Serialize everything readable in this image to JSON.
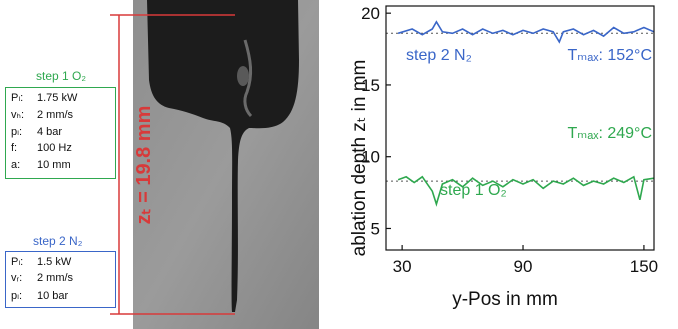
{
  "step1": {
    "title": "step 1 O₂",
    "params": [
      {
        "label": "Pₗ:",
        "value": "1.75 kW"
      },
      {
        "label": "vₕ:",
        "value": "2 mm/s"
      },
      {
        "label": "pₗ:",
        "value": "4 bar"
      },
      {
        "label": "f:",
        "value": "100 Hz"
      },
      {
        "label": "a:",
        "value": "10 mm"
      }
    ],
    "color": "#2fa84f"
  },
  "step2": {
    "title": "step 2 N₂",
    "params": [
      {
        "label": "Pₗ:",
        "value": "1.5 kW"
      },
      {
        "label": "vᵣ:",
        "value": "2 mm/s"
      },
      {
        "label": "pₗ:",
        "value": "10 bar"
      }
    ],
    "color": "#3a66c8"
  },
  "photo": {
    "depth_label": "zₜ = 19.8 mm",
    "marker_color": "#d83a3a"
  },
  "chart_data": {
    "type": "line",
    "xlabel": "y-Pos in mm",
    "ylabel": "ablation depth zₜ in mm",
    "xlim": [
      22,
      155
    ],
    "ylim": [
      3.5,
      20.5
    ],
    "xticks": [
      30,
      90,
      150
    ],
    "yticks": [
      5,
      10,
      15,
      20
    ],
    "grid": false,
    "series": [
      {
        "name": "step 2 N₂",
        "color": "#3a66c8",
        "mean": 18.6,
        "annotation": "Tₘₐₓ: 152°C",
        "x": [
          28,
          35,
          40,
          45,
          47,
          50,
          55,
          60,
          65,
          70,
          75,
          80,
          85,
          90,
          95,
          100,
          105,
          108,
          110,
          115,
          120,
          125,
          130,
          135,
          140,
          145,
          150,
          155
        ],
        "y": [
          18.6,
          18.9,
          18.5,
          18.9,
          19.4,
          18.7,
          18.6,
          18.9,
          18.5,
          18.9,
          18.6,
          18.8,
          18.5,
          18.8,
          18.6,
          18.9,
          18.7,
          18.0,
          18.7,
          18.9,
          18.5,
          18.8,
          18.4,
          19.0,
          18.6,
          18.7,
          19.0,
          18.7
        ]
      },
      {
        "name": "step 1 O₂",
        "color": "#2fa84f",
        "mean": 8.3,
        "annotation": "Tₘₐₓ: 249°C",
        "x": [
          28,
          32,
          36,
          40,
          43,
          45,
          47,
          50,
          55,
          60,
          65,
          70,
          75,
          80,
          85,
          90,
          95,
          100,
          105,
          110,
          115,
          120,
          125,
          130,
          135,
          140,
          145,
          148,
          150,
          155
        ],
        "y": [
          8.4,
          8.6,
          8.2,
          8.6,
          8.0,
          7.6,
          6.7,
          8.1,
          8.4,
          7.9,
          8.5,
          8.0,
          8.3,
          7.9,
          8.4,
          8.1,
          8.4,
          7.8,
          8.3,
          8.1,
          8.5,
          8.0,
          8.3,
          8.1,
          8.5,
          8.2,
          8.6,
          7.0,
          8.4,
          8.5
        ]
      }
    ]
  }
}
